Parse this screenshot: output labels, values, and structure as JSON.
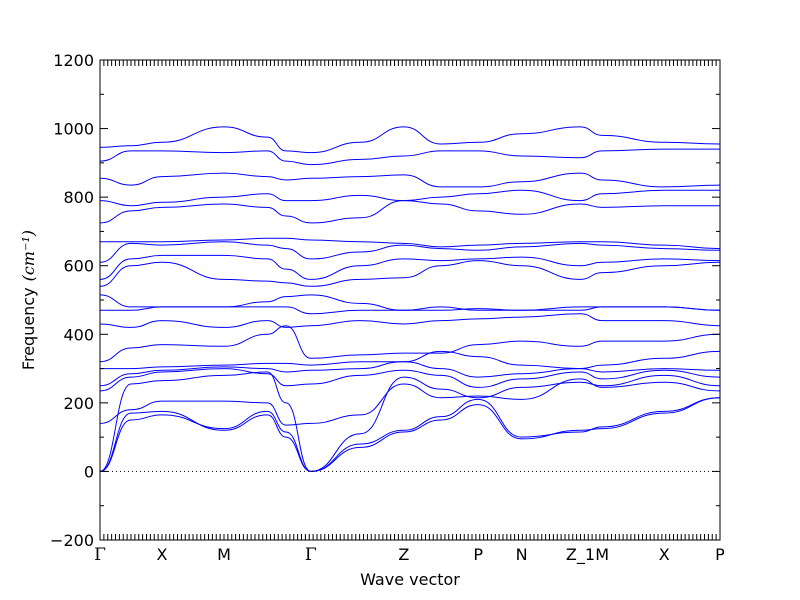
{
  "chart_data": {
    "type": "line",
    "xlabel": "Wave vector",
    "ylabel": "Frequency",
    "ylabel_unit": "(cm⁻¹)",
    "ylim": [
      -200,
      1200
    ],
    "yticks": [
      "−200",
      "0",
      "200",
      "400",
      "600",
      "800",
      "1000",
      "1200"
    ],
    "ytick_values": [
      -200,
      0,
      200,
      400,
      600,
      800,
      1000,
      1200
    ],
    "high_symmetry_points": [
      {
        "label": "Γ",
        "pos": 0.0
      },
      {
        "label": "X",
        "pos": 1.0
      },
      {
        "label": "M",
        "pos": 2.0
      },
      {
        "label": "Γ",
        "pos": 3.4
      },
      {
        "label": "Z",
        "pos": 4.9
      },
      {
        "label": "P",
        "pos": 6.1
      },
      {
        "label": "N",
        "pos": 6.8
      },
      {
        "label": "Z_1",
        "pos": 7.75
      },
      {
        "label": "M",
        "pos": 8.1
      },
      {
        "label": "X",
        "pos": 9.1
      },
      {
        "label": "P",
        "pos": 10.0
      }
    ],
    "zero_line": true,
    "grid": false,
    "line_color": "#0000ff",
    "bands": [
      [
        0,
        170,
        175,
        120,
        165,
        100,
        0,
        70,
        115,
        150,
        195,
        95,
        120,
        125,
        170,
        215
      ],
      [
        0,
        150,
        165,
        125,
        175,
        115,
        0,
        80,
        120,
        160,
        210,
        100,
        115,
        130,
        175,
        215
      ],
      [
        0,
        255,
        265,
        280,
        290,
        200,
        0,
        110,
        275,
        240,
        215,
        245,
        260,
        250,
        280,
        250
      ],
      [
        140,
        180,
        205,
        205,
        200,
        135,
        140,
        165,
        255,
        215,
        220,
        210,
        270,
        245,
        260,
        235
      ],
      [
        235,
        275,
        290,
        300,
        285,
        250,
        255,
        280,
        295,
        280,
        245,
        270,
        290,
        270,
        295,
        275
      ],
      [
        250,
        285,
        295,
        305,
        300,
        290,
        295,
        300,
        320,
        300,
        275,
        285,
        300,
        290,
        300,
        295
      ],
      [
        300,
        300,
        305,
        310,
        315,
        315,
        310,
        320,
        320,
        350,
        335,
        310,
        300,
        310,
        330,
        350
      ],
      [
        320,
        360,
        370,
        365,
        400,
        425,
        330,
        340,
        345,
        345,
        370,
        380,
        365,
        380,
        380,
        400
      ],
      [
        430,
        420,
        440,
        420,
        440,
        420,
        425,
        440,
        430,
        440,
        445,
        450,
        460,
        440,
        440,
        425
      ],
      [
        470,
        470,
        480,
        480,
        480,
        480,
        460,
        470,
        470,
        470,
        475,
        470,
        470,
        480,
        480,
        470
      ],
      [
        515,
        480,
        480,
        480,
        495,
        510,
        515,
        490,
        470,
        480,
        470,
        470,
        480,
        480,
        480,
        470
      ],
      [
        540,
        600,
        610,
        560,
        555,
        550,
        540,
        560,
        565,
        600,
        615,
        600,
        560,
        580,
        600,
        610
      ],
      [
        560,
        620,
        630,
        630,
        620,
        590,
        560,
        600,
        620,
        615,
        620,
        625,
        600,
        610,
        620,
        615
      ],
      [
        610,
        665,
        660,
        670,
        660,
        650,
        620,
        640,
        660,
        650,
        645,
        655,
        665,
        660,
        650,
        645
      ],
      [
        670,
        670,
        670,
        675,
        680,
        680,
        675,
        670,
        665,
        655,
        660,
        665,
        670,
        670,
        660,
        650
      ],
      [
        725,
        760,
        770,
        780,
        770,
        745,
        725,
        740,
        790,
        780,
        760,
        750,
        780,
        770,
        775,
        775
      ],
      [
        790,
        775,
        785,
        800,
        810,
        790,
        790,
        805,
        790,
        800,
        810,
        820,
        790,
        810,
        820,
        820
      ],
      [
        855,
        835,
        860,
        870,
        860,
        850,
        855,
        860,
        865,
        830,
        830,
        845,
        870,
        850,
        830,
        835
      ],
      [
        905,
        935,
        935,
        930,
        935,
        905,
        895,
        910,
        920,
        935,
        935,
        920,
        915,
        935,
        940,
        940
      ],
      [
        945,
        950,
        960,
        1005,
        975,
        935,
        930,
        960,
        1005,
        955,
        960,
        985,
        1005,
        980,
        960,
        955
      ]
    ]
  }
}
